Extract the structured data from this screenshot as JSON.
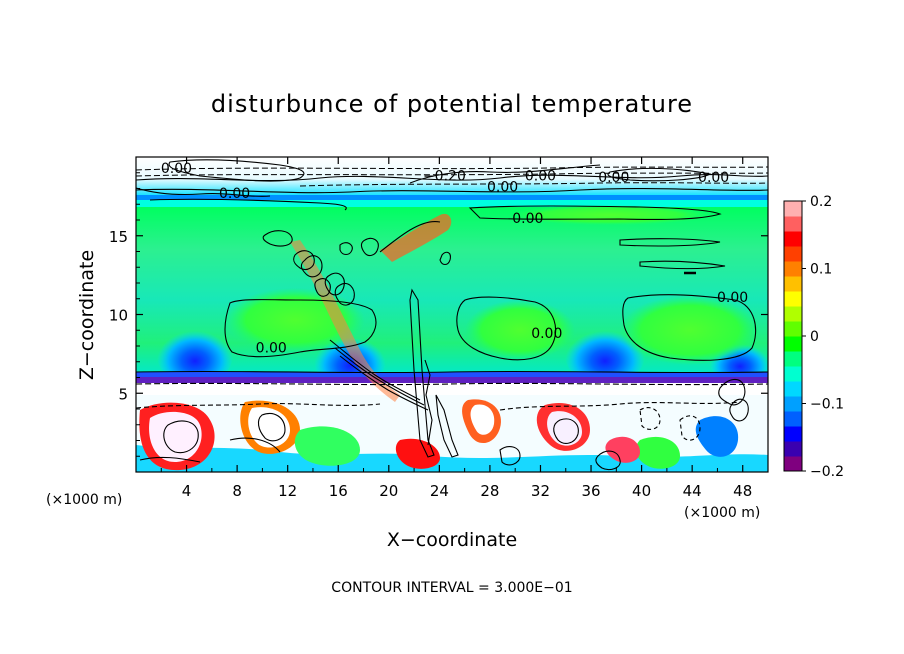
{
  "chart_data": {
    "type": "heatmap",
    "title": "disturbunce of potential temperature",
    "xlabel": "X−coordinate",
    "ylabel": "Z−coordinate",
    "x_unit_left": "(×1000 m)",
    "x_unit_right": "(×1000 m)",
    "footer": "CONTOUR INTERVAL = 3.000E−01",
    "xlim": [
      0,
      50
    ],
    "ylim": [
      0,
      20
    ],
    "x_ticks": [
      4,
      8,
      12,
      16,
      20,
      24,
      28,
      32,
      36,
      40,
      44,
      48
    ],
    "x_tick_labels": [
      "4",
      "8",
      "12",
      "16",
      "20",
      "24",
      "28",
      "32",
      "36",
      "40",
      "44",
      "48"
    ],
    "y_ticks": [
      5,
      10,
      15
    ],
    "y_tick_labels": [
      "5",
      "10",
      "15"
    ],
    "colorbar": {
      "range": [
        -0.2,
        0.2
      ],
      "ticks": [
        0.2,
        0.1,
        0,
        -0.1,
        -0.2
      ],
      "tick_labels": [
        "0.2",
        "0.1",
        "0",
        "−0.1",
        "−0.2"
      ],
      "colors": [
        "#7f007f",
        "#3a00b0",
        "#0000ff",
        "#0060ff",
        "#00a0ff",
        "#00d8ff",
        "#00ffd0",
        "#00ff80",
        "#00ff00",
        "#60ff00",
        "#b0ff00",
        "#ffff00",
        "#ffc000",
        "#ff8000",
        "#ff4000",
        "#ff0000",
        "#ff6060",
        "#ffb0b0"
      ]
    },
    "contour_labels": [
      {
        "text": "0.00",
        "x": 3.2,
        "y": 19.0
      },
      {
        "text": "0.00",
        "x": 7.8,
        "y": 17.4
      },
      {
        "text": "−0.20",
        "x": 24.4,
        "y": 18.5
      },
      {
        "text": "0.00",
        "x": 29.0,
        "y": 17.8
      },
      {
        "text": "0.00",
        "x": 32.0,
        "y": 18.5
      },
      {
        "text": "0.00",
        "x": 37.8,
        "y": 18.4
      },
      {
        "text": "0.00",
        "x": 45.7,
        "y": 18.4
      },
      {
        "text": "0.00",
        "x": 31.0,
        "y": 15.8
      },
      {
        "text": "0.00",
        "x": 47.2,
        "y": 10.8
      },
      {
        "text": "0.00",
        "x": 10.7,
        "y": 7.6
      },
      {
        "text": "0.00",
        "x": 32.5,
        "y": 8.5
      }
    ]
  }
}
